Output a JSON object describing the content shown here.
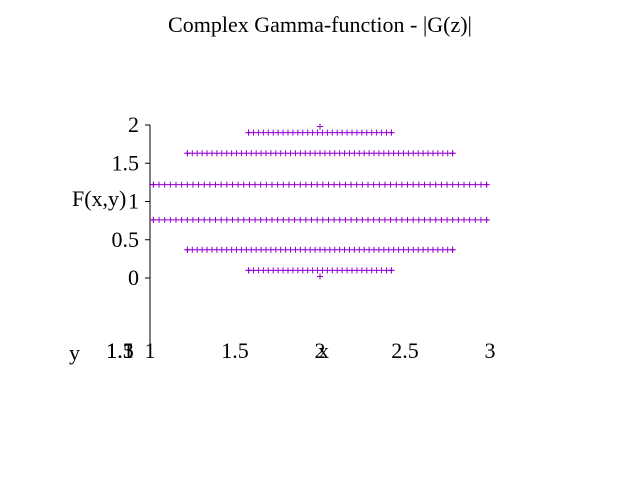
{
  "chart_data": {
    "type": "scatter",
    "title": "Complex Gamma-function - |G(z)|",
    "xlabel": "x",
    "ylabel": "y",
    "zlabel": "F(x,y)",
    "xlim": [
      1,
      3
    ],
    "zlim": [
      0,
      2
    ],
    "x_ticks": [
      "1",
      "1.5",
      "2",
      "2.5",
      "3"
    ],
    "z_ticks": [
      "2",
      "1.5",
      "1",
      "0.5",
      "0"
    ],
    "y_ticks": [
      "1.5",
      "1.3",
      "1.1"
    ],
    "marker": "+",
    "color": "#9400d3",
    "rows": [
      {
        "z": 1.9,
        "x_min": 1.58,
        "x_max": 2.42,
        "count": 30
      },
      {
        "z": 1.63,
        "x_min": 1.22,
        "x_max": 2.78,
        "count": 55
      },
      {
        "z": 1.22,
        "x_min": 1.02,
        "x_max": 2.98,
        "count": 60
      },
      {
        "z": 0.76,
        "x_min": 1.02,
        "x_max": 2.98,
        "count": 60
      },
      {
        "z": 0.37,
        "x_min": 1.22,
        "x_max": 2.78,
        "count": 55
      },
      {
        "z": 0.1,
        "x_min": 1.58,
        "x_max": 2.42,
        "count": 30
      }
    ],
    "points": [
      {
        "x": 2.0,
        "z": 1.98
      },
      {
        "x": 2.0,
        "z": 0.02
      }
    ]
  }
}
